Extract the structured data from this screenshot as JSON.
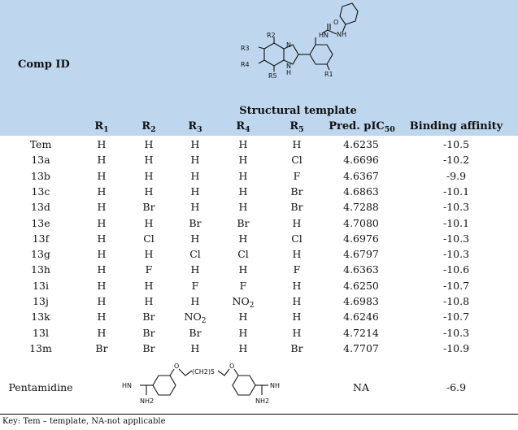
{
  "header": {
    "comp_id_label": "Comp ID",
    "structural_template_caption": "Structural template",
    "columns": {
      "r1": {
        "base": "R",
        "sub": "1"
      },
      "r2": {
        "base": "R",
        "sub": "2"
      },
      "r3": {
        "base": "R",
        "sub": "3"
      },
      "r4": {
        "base": "R",
        "sub": "4"
      },
      "r5": {
        "base": "R",
        "sub": "5"
      },
      "pic50": {
        "base": "Pred. pIC",
        "sub": "50"
      },
      "binding_affinity": "Binding affinity"
    }
  },
  "structure_labels": {
    "r1": "R1",
    "r2": "R2",
    "r3": "R3",
    "r4": "R4",
    "r5": "R5",
    "n_top": "N",
    "n_bottom": "N",
    "h": "H",
    "hn": "HN",
    "nh": "NH",
    "o": "O"
  },
  "rows": [
    {
      "id": "Tem",
      "r1": "H",
      "r2": "H",
      "r3": "H",
      "r4": "H",
      "r5": "H",
      "pic50": "4.6235",
      "ba": "-10.5"
    },
    {
      "id": "13a",
      "r1": "H",
      "r2": "H",
      "r3": "H",
      "r4": "H",
      "r5": "Cl",
      "pic50": "4.6696",
      "ba": "-10.2"
    },
    {
      "id": "13b",
      "r1": "H",
      "r2": "H",
      "r3": "H",
      "r4": "H",
      "r5": "F",
      "pic50": "4.6367",
      "ba": "-9.9"
    },
    {
      "id": "13c",
      "r1": "H",
      "r2": "H",
      "r3": "H",
      "r4": "H",
      "r5": "Br",
      "pic50": "4.6863",
      "ba": "-10.1"
    },
    {
      "id": "13d",
      "r1": "H",
      "r2": "Br",
      "r3": "H",
      "r4": "H",
      "r5": "Br",
      "pic50": "4.7288",
      "ba": "-10.3"
    },
    {
      "id": "13e",
      "r1": "H",
      "r2": "H",
      "r3": "Br",
      "r4": "Br",
      "r5": "H",
      "pic50": "4.7080",
      "ba": "-10.1"
    },
    {
      "id": "13f",
      "r1": "H",
      "r2": "Cl",
      "r3": "H",
      "r4": "H",
      "r5": "Cl",
      "pic50": "4.6976",
      "ba": "-10.3"
    },
    {
      "id": "13g",
      "r1": "H",
      "r2": "H",
      "r3": "Cl",
      "r4": "Cl",
      "r5": "H",
      "pic50": "4.6797",
      "ba": "-10.3"
    },
    {
      "id": "13h",
      "r1": "H",
      "r2": "F",
      "r3": "H",
      "r4": "H",
      "r5": "F",
      "pic50": "4.6363",
      "ba": "-10.6"
    },
    {
      "id": "13i",
      "r1": "H",
      "r2": "H",
      "r3": "F",
      "r4": "F",
      "r5": "H",
      "pic50": "4.6250",
      "ba": "-10.7"
    },
    {
      "id": "13j",
      "r1": "H",
      "r2": "H",
      "r3": "H",
      "r4": "NO2",
      "r5": "H",
      "pic50": "4.6983",
      "ba": "-10.8"
    },
    {
      "id": "13k",
      "r1": "H",
      "r2": "Br",
      "r3": "NO2",
      "r4": "H",
      "r5": "H",
      "pic50": "4.6246",
      "ba": "-10.7"
    },
    {
      "id": "13l",
      "r1": "H",
      "r2": "Br",
      "r3": "Br",
      "r4": "H",
      "r5": "H",
      "pic50": "4.7214",
      "ba": "-10.3"
    },
    {
      "id": "13m",
      "r1": "Br",
      "r2": "Br",
      "r3": "H",
      "r4": "H",
      "r5": "Br",
      "pic50": "4.7707",
      "ba": "-10.9"
    }
  ],
  "pentamidine": {
    "id": "Pentamidine",
    "pic50": "NA",
    "ba": "-6.9",
    "structure_labels": {
      "hn": "HN",
      "nh2_left": "NH2",
      "nh": "NH",
      "nh2_right": "NH2",
      "o_left": "O",
      "o_right": "O",
      "chain": "(CH2)5"
    }
  },
  "key_text": "Key: Tem – template, NA-not applicable"
}
